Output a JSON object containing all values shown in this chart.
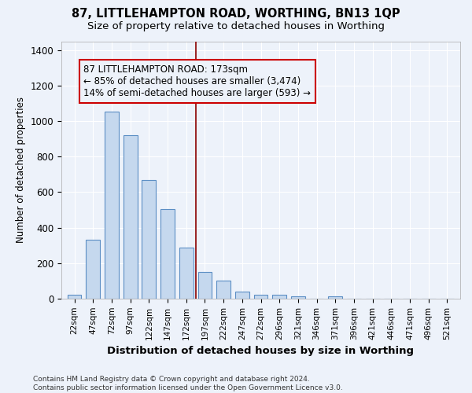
{
  "title": "87, LITTLEHAMPTON ROAD, WORTHING, BN13 1QP",
  "subtitle": "Size of property relative to detached houses in Worthing",
  "xlabel": "Distribution of detached houses by size in Worthing",
  "ylabel": "Number of detached properties",
  "bar_labels": [
    "22sqm",
    "47sqm",
    "72sqm",
    "97sqm",
    "122sqm",
    "147sqm",
    "172sqm",
    "197sqm",
    "222sqm",
    "247sqm",
    "272sqm",
    "296sqm",
    "321sqm",
    "346sqm",
    "371sqm",
    "396sqm",
    "421sqm",
    "446sqm",
    "471sqm",
    "496sqm",
    "521sqm"
  ],
  "bar_values": [
    22,
    330,
    1055,
    920,
    670,
    503,
    287,
    150,
    100,
    38,
    22,
    22,
    12,
    0,
    12,
    0,
    0,
    0,
    0,
    0,
    0
  ],
  "bar_color": "#c5d8ee",
  "bar_edge_color": "#5b8ec4",
  "vline_color": "#8b0000",
  "annotation_text": "87 LITTLEHAMPTON ROAD: 173sqm\n← 85% of detached houses are smaller (3,474)\n14% of semi-detached houses are larger (593) →",
  "annotation_box_color": "#cc0000",
  "ylim": [
    0,
    1450
  ],
  "yticks": [
    0,
    200,
    400,
    600,
    800,
    1000,
    1200,
    1400
  ],
  "footnote": "Contains HM Land Registry data © Crown copyright and database right 2024.\nContains public sector information licensed under the Open Government Licence v3.0.",
  "bg_color": "#edf2fa",
  "grid_color": "#ffffff",
  "title_fontsize": 10.5,
  "subtitle_fontsize": 9.5,
  "xlabel_fontsize": 9.5,
  "ylabel_fontsize": 8.5,
  "tick_fontsize": 7.5,
  "annotation_fontsize": 8.5,
  "footnote_fontsize": 6.5,
  "bar_width": 0.75,
  "vline_x_index": 6.5
}
